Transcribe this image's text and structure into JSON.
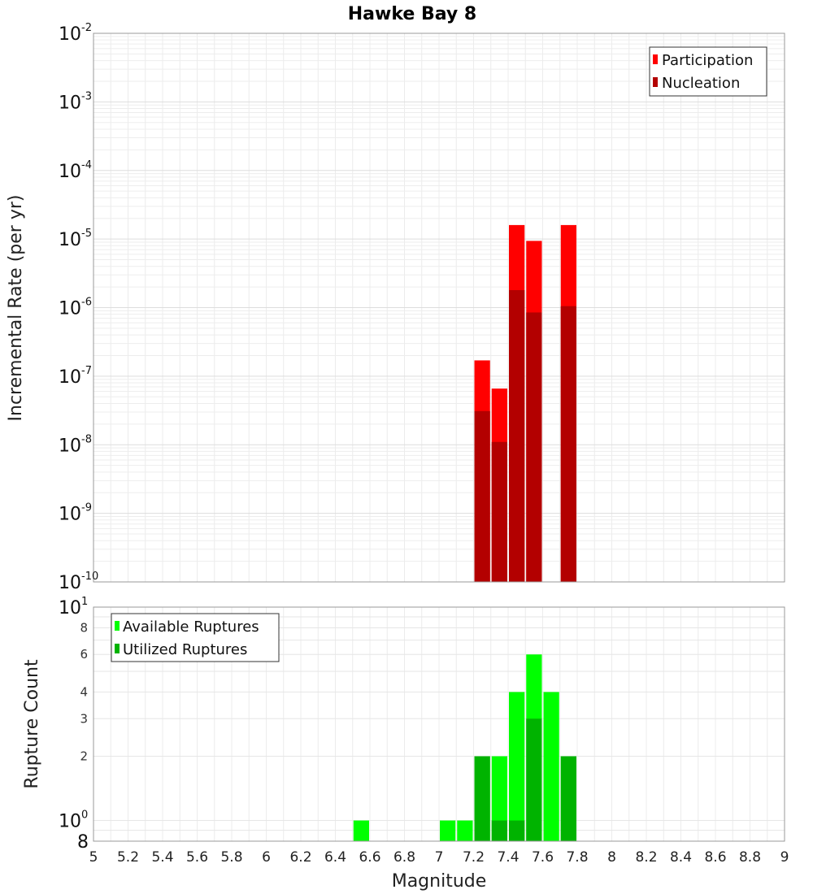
{
  "chart_data": [
    {
      "type": "bar",
      "title": "Hawke Bay 8",
      "xlabel": "Magnitude",
      "ylabel": "Incremental Rate (per yr)",
      "yscale": "log",
      "xlim": [
        5,
        9
      ],
      "ylim": [
        1e-10,
        0.01
      ],
      "y_ticks": [
        {
          "base": "10",
          "exp": "-2",
          "value": 0.01
        },
        {
          "base": "10",
          "exp": "-3",
          "value": 0.001
        },
        {
          "base": "10",
          "exp": "-4",
          "value": 0.0001
        },
        {
          "base": "10",
          "exp": "-5",
          "value": 1e-05
        },
        {
          "base": "10",
          "exp": "-6",
          "value": 1e-06
        },
        {
          "base": "10",
          "exp": "-7",
          "value": 1e-07
        },
        {
          "base": "10",
          "exp": "-8",
          "value": 1e-08
        },
        {
          "base": "10",
          "exp": "-9",
          "value": 1e-09
        },
        {
          "base": "10",
          "exp": "-10",
          "value": 1e-10
        }
      ],
      "legend": {
        "position": "top-right",
        "entries": [
          {
            "label": "Participation",
            "color": "#ff0000"
          },
          {
            "label": "Nucleation",
            "color": "#b30000"
          }
        ]
      },
      "series": [
        {
          "name": "Participation",
          "color": "#ff0000",
          "points": [
            {
              "x": 7.25,
              "y": 1.7e-07
            },
            {
              "x": 7.35,
              "y": 6.6e-08
            },
            {
              "x": 7.45,
              "y": 1.6e-05
            },
            {
              "x": 7.55,
              "y": 9.4e-06
            },
            {
              "x": 7.75,
              "y": 1.6e-05
            }
          ]
        },
        {
          "name": "Nucleation",
          "color": "#b30000",
          "points": [
            {
              "x": 7.25,
              "y": 3.1e-08
            },
            {
              "x": 7.35,
              "y": 1.1e-08
            },
            {
              "x": 7.45,
              "y": 1.8e-06
            },
            {
              "x": 7.55,
              "y": 8.5e-07
            },
            {
              "x": 7.75,
              "y": 1.05e-06
            }
          ]
        }
      ]
    },
    {
      "type": "bar",
      "xlabel": "Magnitude",
      "ylabel": "Rupture Count",
      "yscale": "log",
      "xlim": [
        5,
        9
      ],
      "ylim": [
        0.8,
        10
      ],
      "x_ticks": [
        "5",
        "5.2",
        "5.4",
        "5.6",
        "5.8",
        "6",
        "6.2",
        "6.4",
        "6.6",
        "6.8",
        "7",
        "7.2",
        "7.4",
        "7.6",
        "7.8",
        "8",
        "8.2",
        "8.4",
        "8.6",
        "8.8",
        "9"
      ],
      "y_major_ticks": [
        {
          "base": "10",
          "exp": "1",
          "value": 10
        },
        {
          "base": "10",
          "exp": "0",
          "value": 1
        },
        {
          "base": "8",
          "exp": "",
          "value": 0.8
        }
      ],
      "y_minor_ticks": [
        {
          "label": "8",
          "value": 8
        },
        {
          "label": "6",
          "value": 6
        },
        {
          "label": "4",
          "value": 4
        },
        {
          "label": "3",
          "value": 3
        },
        {
          "label": "2",
          "value": 2
        }
      ],
      "legend": {
        "position": "top-left",
        "entries": [
          {
            "label": "Available Ruptures",
            "color": "#00ff00"
          },
          {
            "label": "Utilized Ruptures",
            "color": "#00b300"
          }
        ]
      },
      "series": [
        {
          "name": "Available Ruptures",
          "color": "#00ff00",
          "points": [
            {
              "x": 6.55,
              "y": 1
            },
            {
              "x": 7.05,
              "y": 1
            },
            {
              "x": 7.15,
              "y": 1
            },
            {
              "x": 7.25,
              "y": 2
            },
            {
              "x": 7.35,
              "y": 2
            },
            {
              "x": 7.45,
              "y": 4
            },
            {
              "x": 7.55,
              "y": 6
            },
            {
              "x": 7.65,
              "y": 4
            },
            {
              "x": 7.75,
              "y": 2
            }
          ]
        },
        {
          "name": "Utilized Ruptures",
          "color": "#00b300",
          "points": [
            {
              "x": 7.25,
              "y": 2
            },
            {
              "x": 7.35,
              "y": 1
            },
            {
              "x": 7.45,
              "y": 1
            },
            {
              "x": 7.55,
              "y": 3
            },
            {
              "x": 7.75,
              "y": 2
            }
          ]
        }
      ]
    }
  ]
}
